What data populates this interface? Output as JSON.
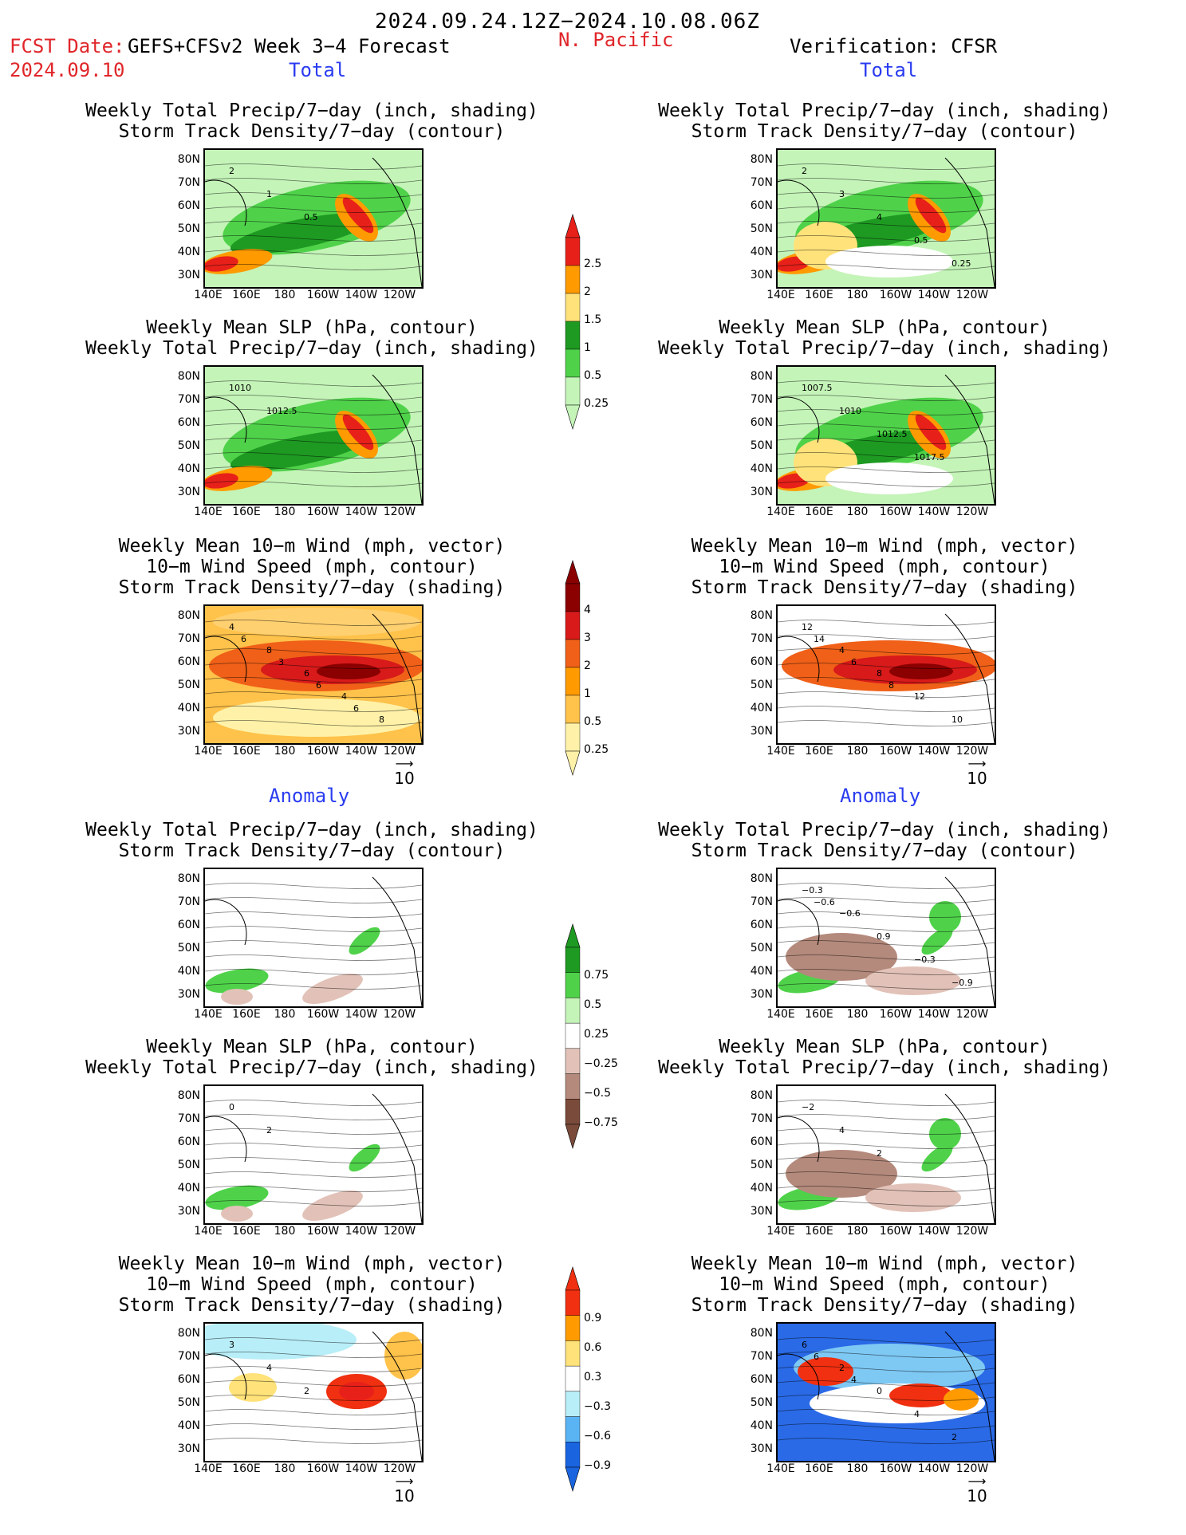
{
  "header": {
    "date_range": "2024.09.24.12Z−2024.10.08.06Z",
    "fcst_label": "FCST Date:",
    "model_label": "GEFS+CFSv2 Week 3−4 Forecast",
    "fcst_date": "2024.09.10",
    "region": "N. Pacific",
    "verification": "Verification: CFSR",
    "total_left": "Total",
    "total_right": "Total",
    "anomaly_left": "Anomaly",
    "anomaly_right": "Anomaly"
  },
  "titles": {
    "precip_storm": [
      "Weekly Total Precip/7−day (inch, shading)",
      "Storm Track Density/7−day (contour)"
    ],
    "slp_precip": [
      "Weekly Mean SLP (hPa, contour)",
      "Weekly Total Precip/7−day (inch, shading)"
    ],
    "wind_storm": [
      "Weekly Mean 10−m Wind (mph, vector)",
      "10−m Wind Speed (mph, contour)",
      "Storm Track Density/7−day (shading)"
    ]
  },
  "axes": {
    "lat": [
      "80N",
      "70N",
      "60N",
      "50N",
      "40N",
      "30N"
    ],
    "lon": [
      "140E",
      "160E",
      "180",
      "160W",
      "140W",
      "120W"
    ]
  },
  "vector_ref": "10",
  "colorbars": {
    "precip_total": {
      "labels": [
        "2.5",
        "2",
        "1.5",
        "1",
        "0.5",
        "0.25"
      ],
      "colors": [
        "#e8201a",
        "#ff9a00",
        "#ffe27a",
        "#1e9a22",
        "#4fd24a",
        "#c4f4b8"
      ]
    },
    "storm_total": {
      "labels": [
        "4",
        "3",
        "2",
        "1",
        "0.5",
        "0.25"
      ],
      "colors": [
        "#8b0000",
        "#d81a1a",
        "#f06018",
        "#ff9a00",
        "#ffc24a",
        "#fff2a8"
      ]
    },
    "precip_anom": {
      "labels": [
        "0.75",
        "0.5",
        "0.25",
        "−0.25",
        "−0.5",
        "−0.75"
      ],
      "colors": [
        "#1e9a22",
        "#4fd24a",
        "#c4f4b8",
        "#ffffff",
        "#e2c2b8",
        "#b48a7c",
        "#7a4a3a"
      ]
    },
    "storm_anom": {
      "labels": [
        "0.9",
        "0.6",
        "0.3",
        "−0.3",
        "−0.6",
        "−0.9"
      ],
      "colors": [
        "#f03010",
        "#ff9a00",
        "#ffe27a",
        "#ffffff",
        "#b8eef8",
        "#5ab4f4",
        "#1a64e0"
      ]
    }
  },
  "panel_labels": {
    "p1_contours": [
      "2",
      "1",
      "0.5"
    ],
    "p2_contours": [
      "2",
      "3",
      "4",
      "0.5",
      "0.25"
    ],
    "p3_contours": [
      "1010",
      "1012.5"
    ],
    "p4_contours": [
      "1007.5",
      "1010",
      "1012.5",
      "1017.5"
    ],
    "p5_contours": [
      "4",
      "8",
      "6",
      "4",
      "8",
      "6",
      "3",
      "6",
      "6"
    ],
    "p6_contours": [
      "12",
      "4",
      "8",
      "12",
      "10",
      "14",
      "6",
      "8"
    ],
    "p7_contours": [],
    "p8_contours": [
      "−0.3",
      "−0.6",
      "0.9",
      "−0.3",
      "−0.9",
      "−0.6"
    ],
    "p9_contours": [
      "0",
      "2"
    ],
    "p10_contours": [
      "−2",
      "4",
      "2"
    ],
    "p11_contours": [
      "3",
      "4",
      "2"
    ],
    "p12_contours": [
      "6",
      "2",
      "0",
      "4",
      "2",
      "6",
      "4"
    ]
  }
}
